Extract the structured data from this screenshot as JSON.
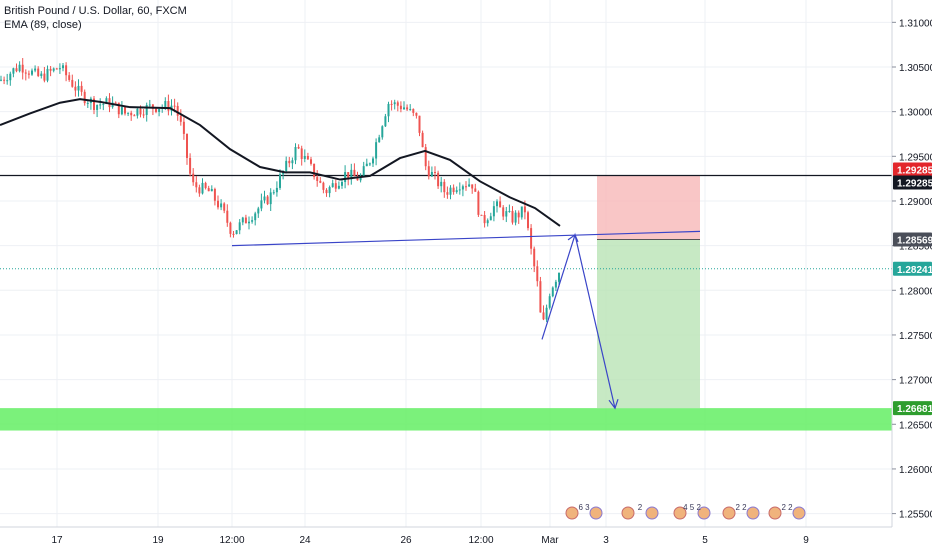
{
  "chart_data": {
    "type": "candlestick",
    "title": "British Pound / U.S. Dollar, 60, FXCM",
    "indicator": "EMA (89, close)",
    "ylim": [
      1.2535,
      1.3125
    ],
    "y_ticks": [
      "1.31000",
      "1.30500",
      "1.30000",
      "1.29500",
      "1.29000",
      "1.28500",
      "1.28000",
      "1.27500",
      "1.27000",
      "1.26500",
      "1.26000",
      "1.25500"
    ],
    "x_ticks": [
      "17",
      "19",
      "12:00",
      "24",
      "26",
      "12:00",
      "Mar",
      "3",
      "5",
      "9"
    ],
    "price_labels": [
      {
        "text": "1.29285",
        "value": 1.29285,
        "bg": "#e3262b"
      },
      {
        "text": "1.29285",
        "value": 1.29285,
        "bg": "#131722"
      },
      {
        "text": "1.28569",
        "value": 1.28569,
        "bg": "#4a4e59"
      },
      {
        "text": "1.28241",
        "value": 1.28241,
        "bg": "#26a69a"
      },
      {
        "text": "1.26681",
        "value": 1.26681,
        "bg": "#2e9d2e"
      }
    ],
    "horizontal_line": {
      "value": 1.29285,
      "color": "#131722"
    },
    "current_price_line": {
      "value": 1.28241,
      "color": "#26a69a"
    },
    "support_zone": {
      "from": 1.2643,
      "to": 1.26681,
      "color": "#64ee64"
    },
    "position_box": {
      "entry": 1.28569,
      "stop": 1.29285,
      "target": 1.26681
    },
    "colors": {
      "up": "#26a69a",
      "down": "#ef5350",
      "ema": "#131722",
      "drawing": "#3a45c8",
      "grid": "#eef0f4"
    },
    "event_badges": [
      "6 3",
      "2",
      "4 5 2",
      "2 2",
      "2 2"
    ]
  }
}
